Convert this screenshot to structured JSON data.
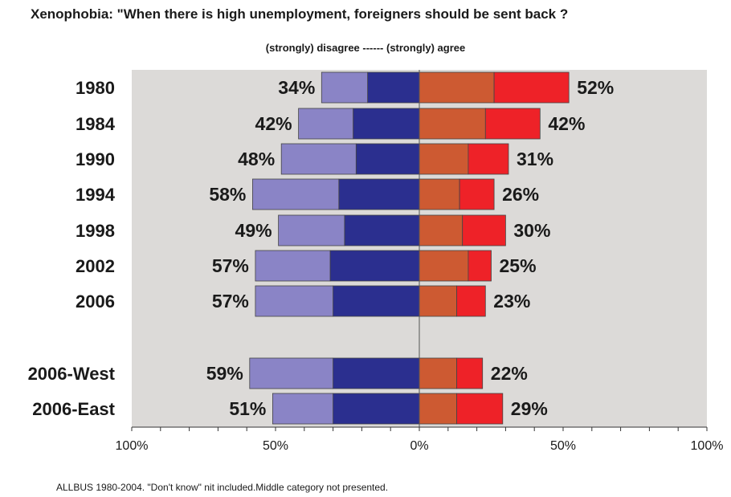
{
  "chart_data": {
    "type": "bar",
    "orientation": "horizontal-diverging",
    "title": "Xenophobia:  \"When there is high unemployment, foreigners should be sent back ?",
    "subtitle": "(strongly) disagree ------  (strongly) agree",
    "categories": [
      "1980",
      "1984",
      "1990",
      "1994",
      "1998",
      "2002",
      "2006",
      "2006-West",
      "2006-East"
    ],
    "series": [
      {
        "side": "disagree",
        "part": "strongly disagree",
        "color": "#2b2f8f",
        "values": [
          18,
          23,
          22,
          28,
          26,
          31,
          30,
          30,
          30
        ]
      },
      {
        "side": "disagree",
        "part": "disagree",
        "color": "#8a84c6",
        "values": [
          16,
          19,
          26,
          30,
          23,
          26,
          27,
          29,
          21
        ]
      },
      {
        "side": "agree",
        "part": "agree",
        "color": "#cd5a32",
        "values": [
          26,
          23,
          17,
          14,
          15,
          17,
          13,
          13,
          13
        ]
      },
      {
        "side": "agree",
        "part": "strongly agree",
        "color": "#ee2228",
        "values": [
          26,
          19,
          14,
          12,
          15,
          8,
          10,
          9,
          16
        ]
      }
    ],
    "totals_disagree": [
      "34%",
      "42%",
      "48%",
      "58%",
      "49%",
      "57%",
      "57%",
      "59%",
      "51%"
    ],
    "totals_agree": [
      "52%",
      "42%",
      "31%",
      "26%",
      "30%",
      "25%",
      "23%",
      "22%",
      "29%"
    ],
    "x_ticks": [
      "100%",
      "50%",
      "0%",
      "50%",
      "100%"
    ],
    "xlim": [
      -100,
      100
    ],
    "plot_background": "#dcdad8",
    "grid": false,
    "footnote": "ALLBUS 1980-2004. \"Don't know\" nit included.Middle category  not presented."
  }
}
